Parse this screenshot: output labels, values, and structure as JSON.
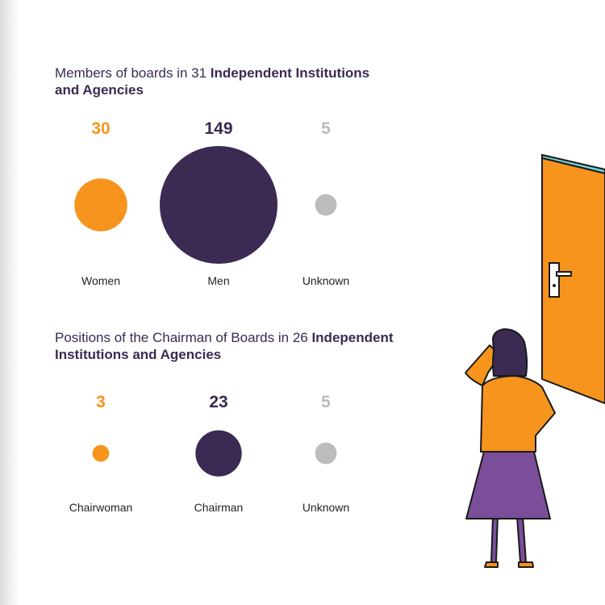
{
  "colors": {
    "women": "#f7941d",
    "men": "#3b2a52",
    "unknown": "#bcbcbe",
    "title_text": "#3b2a52",
    "skirt": "#7b4e9a",
    "door": "#f7941d"
  },
  "chart_data": [
    {
      "type": "bubble",
      "title_regular": "Members of boards in 31 ",
      "title_bold": "Independent Institutions and Agencies",
      "categories": [
        "Women",
        "Men",
        "Unknown"
      ],
      "values": [
        30,
        149,
        5
      ],
      "value_labels": [
        "30",
        "149",
        "5"
      ]
    },
    {
      "type": "bubble",
      "title_regular": "Positions of the Chairman of Boards in 26 ",
      "title_bold": "Independent Institutions and Agencies",
      "categories": [
        "Chairwoman",
        "Chairman",
        "Unknown"
      ],
      "values": [
        3,
        23,
        5
      ],
      "value_labels": [
        "3",
        "23",
        "5"
      ]
    }
  ],
  "illustration": {
    "subject": "woman-looking-at-door-icon"
  }
}
